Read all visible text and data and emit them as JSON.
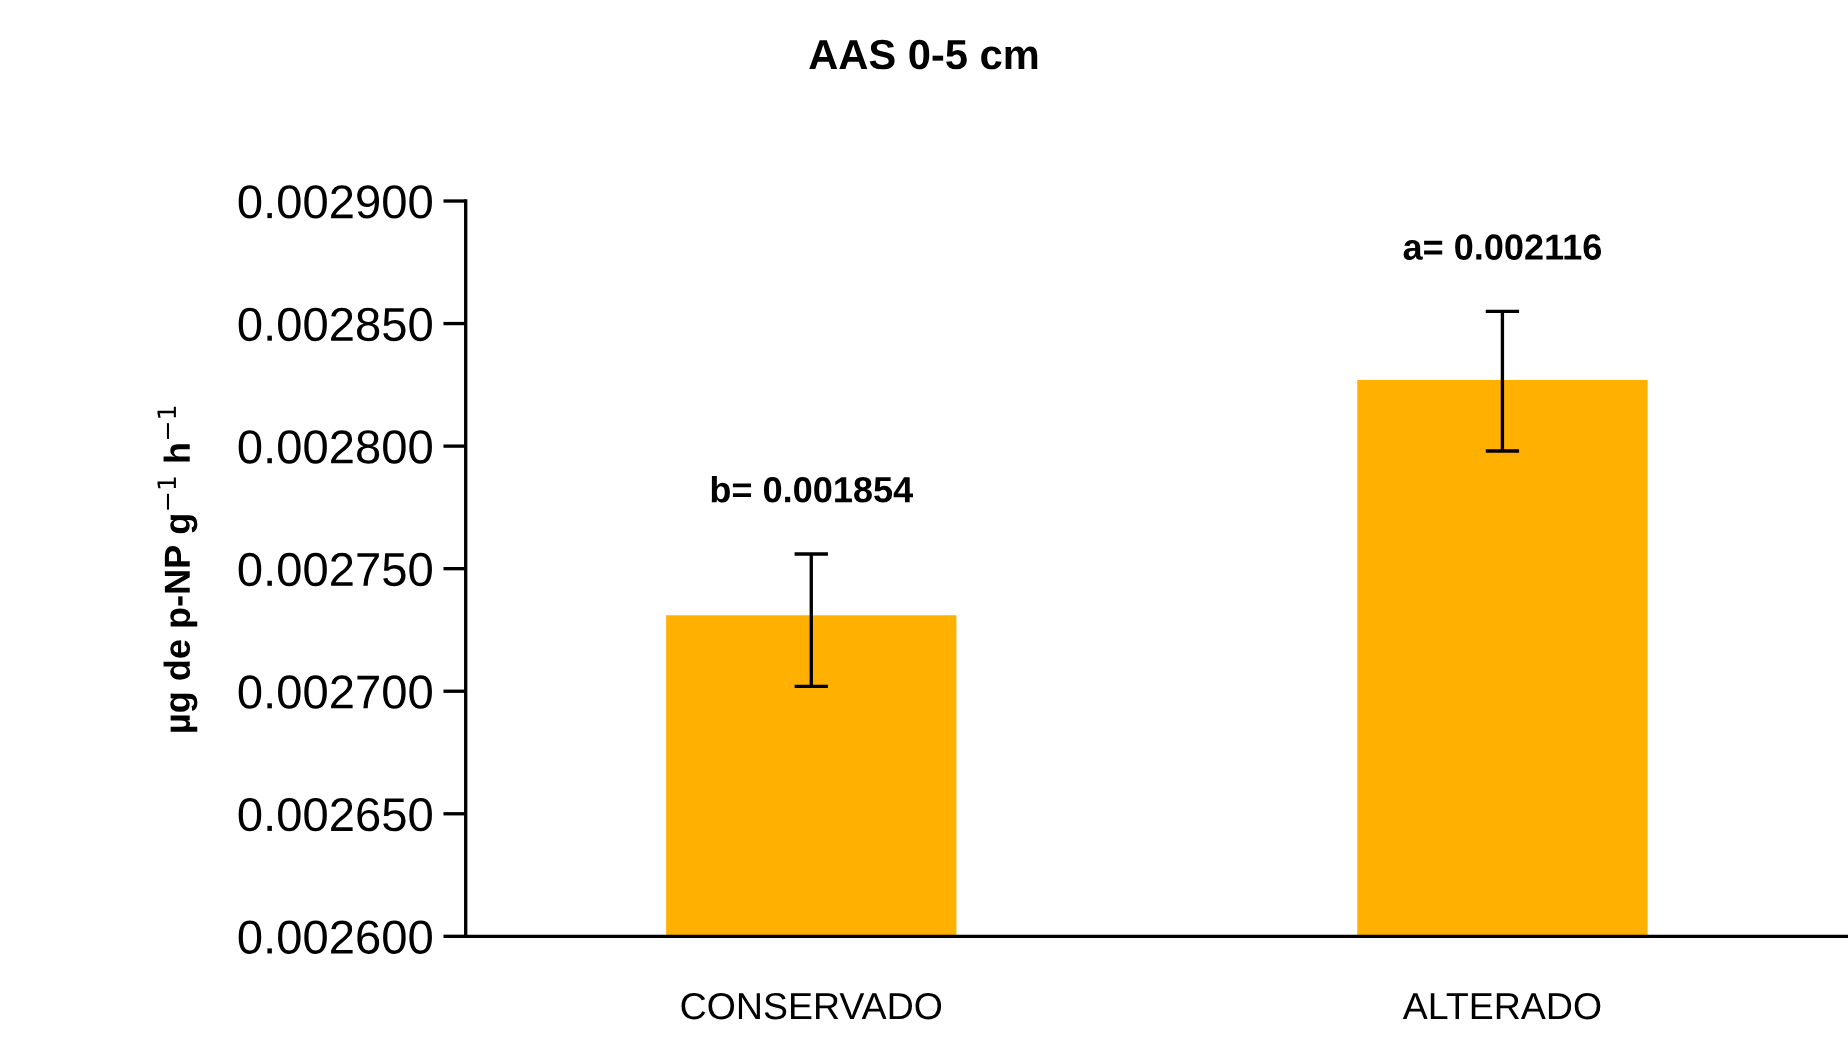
{
  "chart_data": {
    "type": "bar",
    "title": "AAS 0-5 cm",
    "ylabel": "µg de p-NP g$^{−1}$ h$^{−1}$",
    "categories": [
      "CONSERVADO",
      "ALTERADO"
    ],
    "values": [
      0.002731,
      0.002827
    ],
    "errors": [
      [
        0.002702,
        0.002756
      ],
      [
        0.002798,
        0.002855
      ]
    ],
    "color": "#ffb000",
    "ylim": [
      0.0026,
      0.0029
    ],
    "yticks": [
      {
        "value": 0.0026,
        "label": "0.002600"
      },
      {
        "value": 0.00265,
        "label": "0.002650"
      },
      {
        "value": 0.0027,
        "label": "0.002700"
      },
      {
        "value": 0.00275,
        "label": "0.002750"
      },
      {
        "value": 0.0028,
        "label": "0.002800"
      },
      {
        "value": 0.00285,
        "label": "0.002850"
      },
      {
        "value": 0.0029,
        "label": "0.002900"
      }
    ],
    "grid": false,
    "annotations": [
      "b= 0.001854",
      "a= 0.002116"
    ]
  }
}
